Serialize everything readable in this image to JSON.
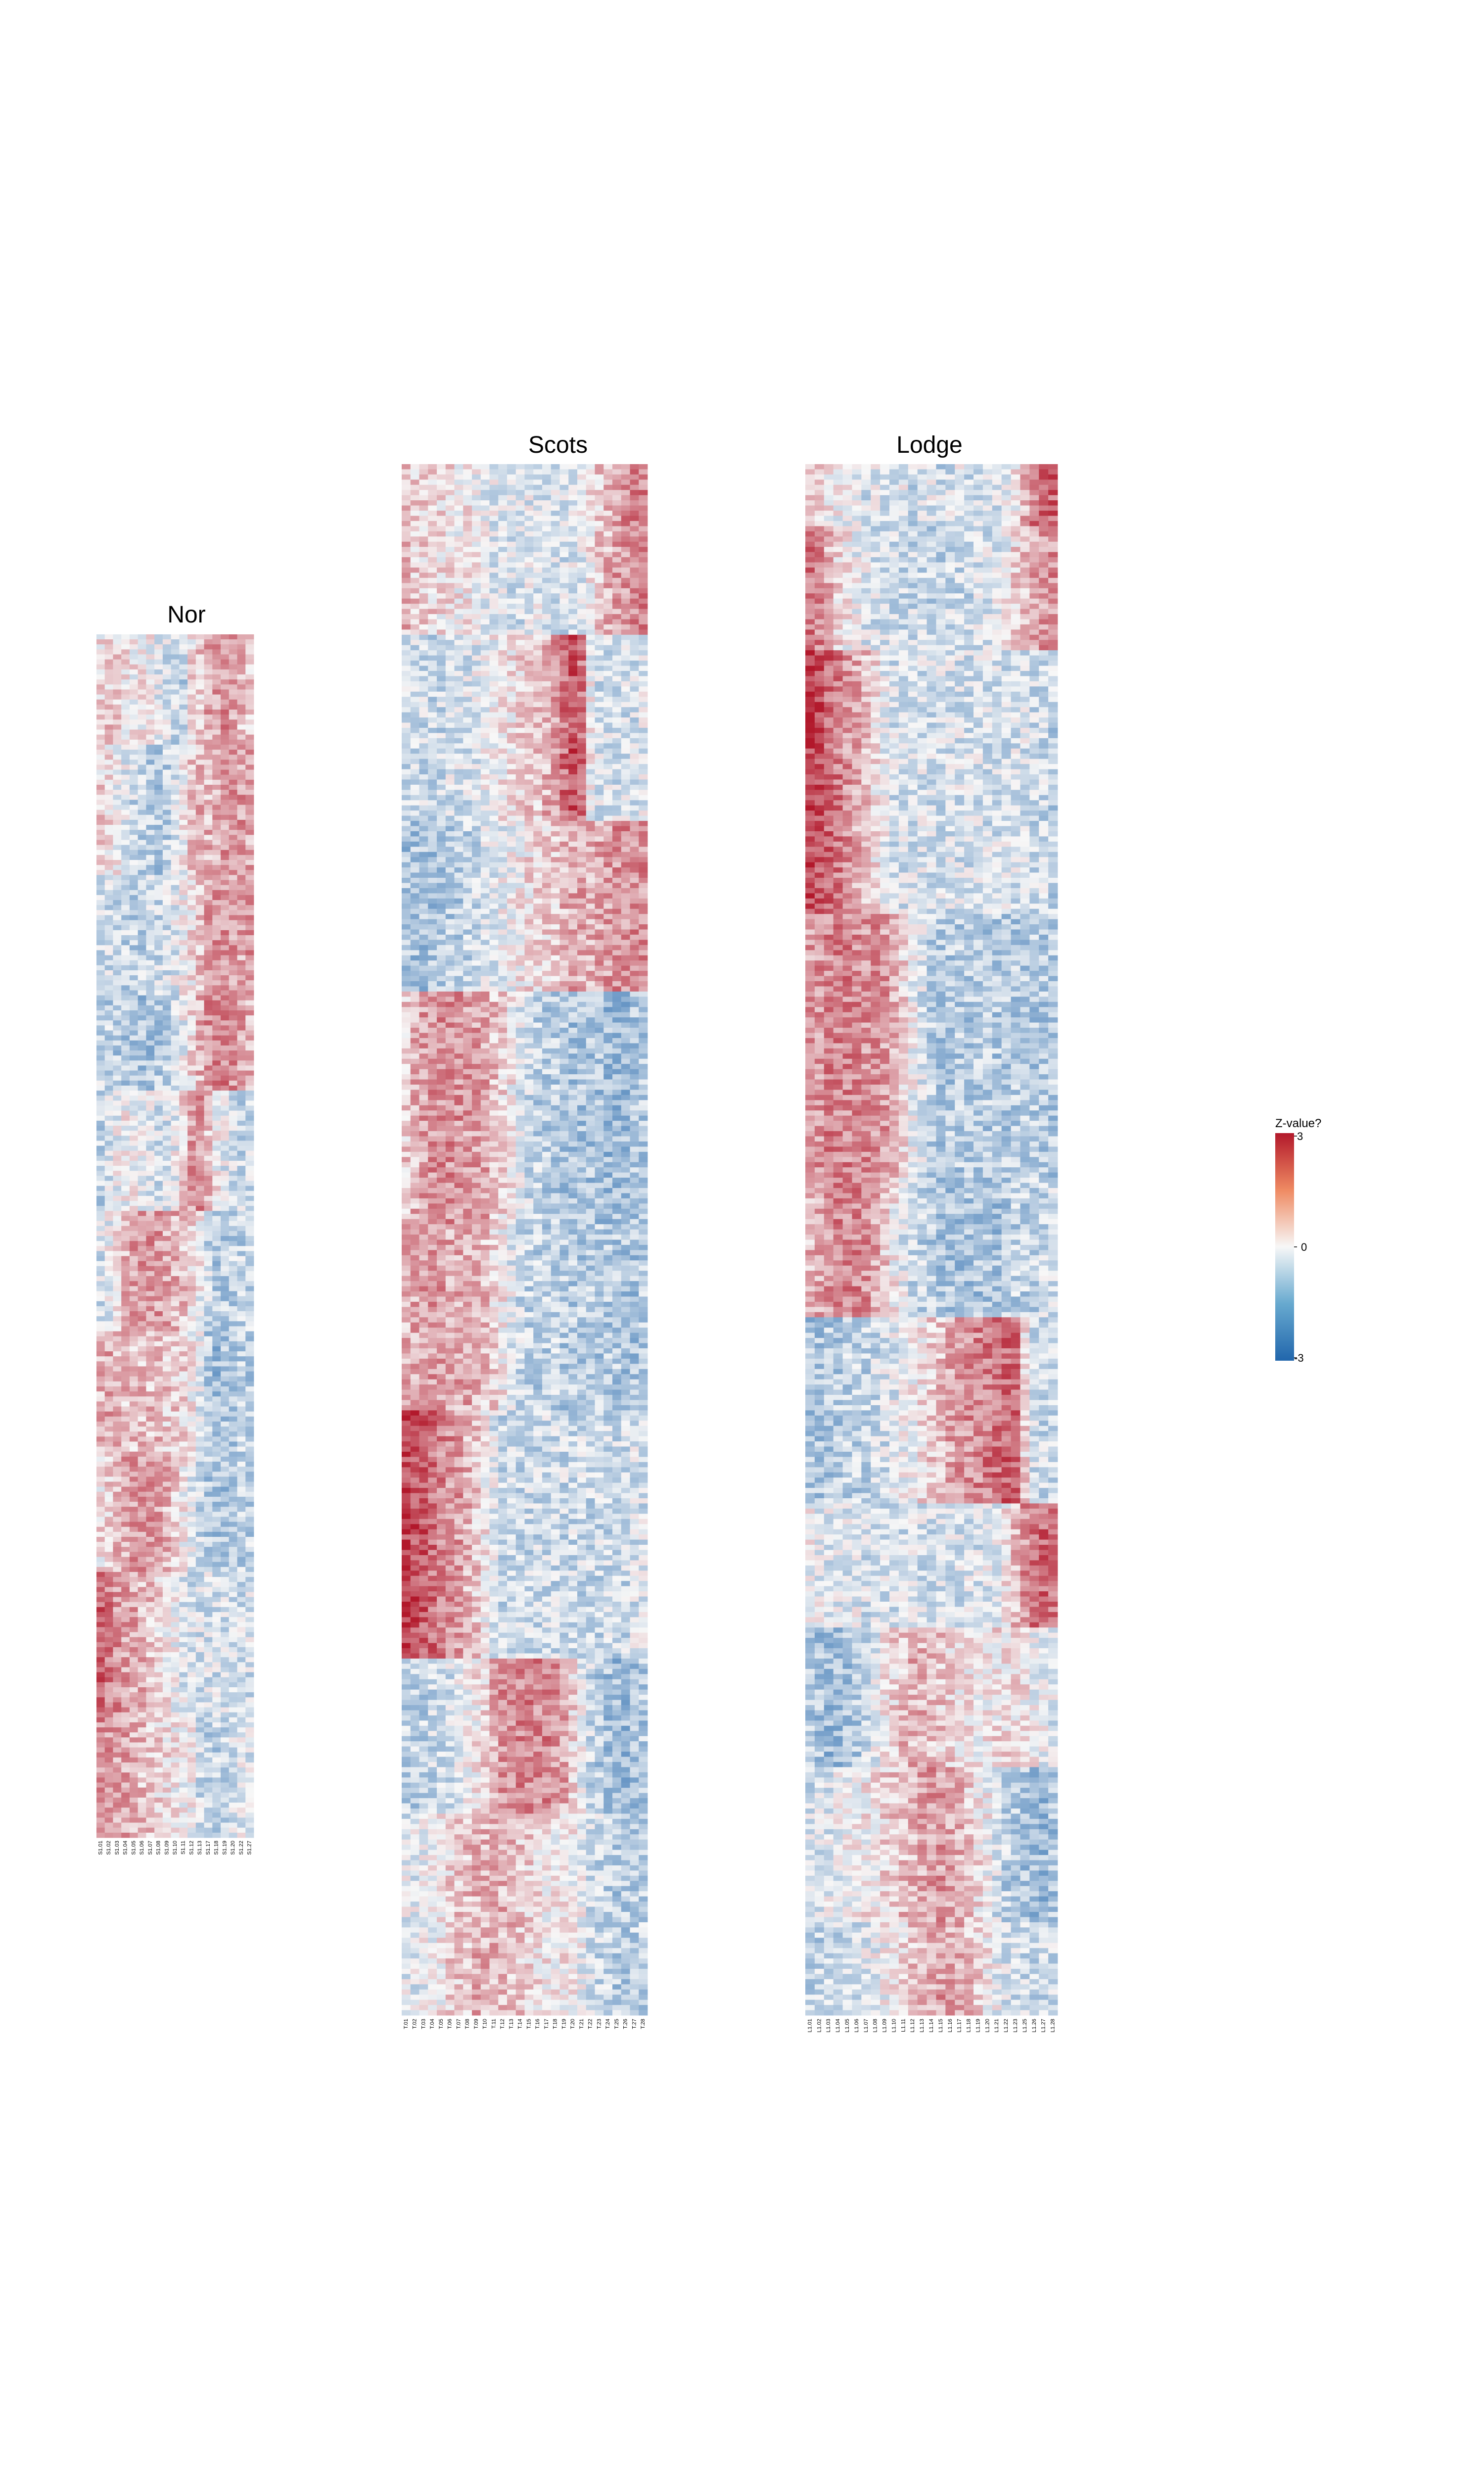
{
  "chart_data": [
    {
      "type": "heatmap",
      "title": "Nor",
      "column_labels": [
        "S1.01",
        "S1.02",
        "S1.03",
        "S1.04",
        "S1.05",
        "S1.06",
        "S1.07",
        "S1.08",
        "S1.09",
        "S1.10",
        "S1.11",
        "S1.12",
        "S1.13",
        "S1.17",
        "S1.18",
        "S1.19",
        "S1.20",
        "S1.22",
        "S1.27"
      ],
      "row_count": 240,
      "blocks": [
        {
          "row_start": 0.0,
          "row_end": 0.09,
          "levels": [
            0.2,
            0.4,
            0.3,
            0.2,
            0.1,
            0.1,
            0.0,
            -0.2,
            -0.3,
            -0.4,
            -0.5,
            0.2,
            0.4,
            0.7,
            0.8,
            0.9,
            0.7,
            0.5,
            0.4
          ]
        },
        {
          "row_start": 0.09,
          "row_end": 0.2,
          "levels": [
            0.3,
            0.2,
            0.0,
            -0.2,
            -0.4,
            -0.5,
            -0.6,
            -0.6,
            -0.5,
            -0.3,
            0.0,
            0.4,
            0.6,
            0.6,
            0.7,
            0.8,
            0.9,
            0.8,
            0.7
          ]
        },
        {
          "row_start": 0.2,
          "row_end": 0.3,
          "levels": [
            -0.3,
            -0.4,
            -0.5,
            -0.5,
            -0.5,
            -0.5,
            -0.4,
            -0.4,
            -0.3,
            -0.2,
            0.0,
            0.2,
            0.4,
            0.8,
            0.9,
            0.9,
            0.8,
            0.7,
            0.9
          ]
        },
        {
          "row_start": 0.3,
          "row_end": 0.38,
          "levels": [
            -0.4,
            -0.5,
            -0.6,
            -0.6,
            -0.6,
            -0.7,
            -0.7,
            -0.6,
            -0.5,
            -0.3,
            -0.1,
            0.2,
            0.6,
            0.9,
            1.0,
            1.0,
            0.9,
            0.8,
            0.6
          ]
        },
        {
          "row_start": 0.38,
          "row_end": 0.48,
          "levels": [
            -0.5,
            -0.3,
            -0.1,
            0.0,
            0.0,
            -0.1,
            -0.2,
            -0.3,
            -0.3,
            -0.1,
            0.4,
            0.8,
            0.9,
            0.5,
            0.1,
            -0.2,
            -0.3,
            -0.4,
            -0.4
          ]
        },
        {
          "row_start": 0.48,
          "row_end": 0.58,
          "levels": [
            -0.3,
            -0.1,
            0.3,
            0.6,
            0.8,
            0.9,
            0.9,
            0.8,
            0.7,
            0.6,
            0.5,
            0.3,
            0.0,
            -0.4,
            -0.6,
            -0.6,
            -0.5,
            -0.5,
            -0.5
          ]
        },
        {
          "row_start": 0.58,
          "row_end": 0.68,
          "levels": [
            0.6,
            0.7,
            0.6,
            0.5,
            0.5,
            0.5,
            0.5,
            0.5,
            0.4,
            0.4,
            0.3,
            0.1,
            -0.2,
            -0.6,
            -0.8,
            -0.7,
            -0.6,
            -0.5,
            -0.6
          ]
        },
        {
          "row_start": 0.68,
          "row_end": 0.78,
          "levels": [
            0.2,
            0.3,
            0.5,
            0.7,
            0.8,
            0.9,
            0.9,
            0.8,
            0.6,
            0.4,
            0.1,
            -0.2,
            -0.4,
            -0.6,
            -0.7,
            -0.7,
            -0.6,
            -0.5,
            -0.5
          ]
        },
        {
          "row_start": 0.78,
          "row_end": 0.9,
          "levels": [
            1.3,
            1.1,
            0.9,
            0.8,
            0.7,
            0.6,
            0.5,
            0.3,
            0.1,
            0.0,
            -0.2,
            -0.3,
            -0.3,
            -0.3,
            -0.3,
            -0.3,
            -0.3,
            -0.3,
            -0.3
          ]
        },
        {
          "row_start": 0.9,
          "row_end": 1.0,
          "levels": [
            0.9,
            0.8,
            0.7,
            0.7,
            0.6,
            0.5,
            0.4,
            0.3,
            0.2,
            0.1,
            0.0,
            0.0,
            -0.4,
            -0.6,
            -0.5,
            -0.4,
            -0.3,
            -0.2,
            -0.2
          ]
        }
      ]
    },
    {
      "type": "heatmap",
      "title": "Scots",
      "column_labels": [
        "T.01",
        "T.02",
        "T.03",
        "T.04",
        "T.05",
        "T.06",
        "T.07",
        "T.08",
        "T.09",
        "T.10",
        "T.11",
        "T.12",
        "T.13",
        "T.14",
        "T.15",
        "T.16",
        "T.17",
        "T.18",
        "T.19",
        "T.20",
        "T.21",
        "T.22",
        "T.23",
        "T.24",
        "T.25",
        "T.26",
        "T.27",
        "T.28"
      ],
      "row_count": 300,
      "blocks": [
        {
          "row_start": 0.0,
          "row_end": 0.11,
          "levels": [
            0.6,
            0.4,
            0.3,
            0.3,
            0.2,
            0.2,
            0.1,
            0.1,
            0.0,
            -0.1,
            -0.2,
            -0.2,
            -0.3,
            -0.3,
            -0.2,
            -0.2,
            -0.2,
            -0.3,
            -0.3,
            -0.2,
            -0.2,
            0.1,
            0.4,
            0.6,
            0.8,
            0.9,
            1.0,
            1.0
          ]
        },
        {
          "row_start": 0.11,
          "row_end": 0.23,
          "levels": [
            -0.4,
            -0.4,
            -0.4,
            -0.4,
            -0.4,
            -0.3,
            -0.3,
            -0.3,
            -0.2,
            -0.1,
            0.0,
            0.1,
            0.2,
            0.3,
            0.4,
            0.4,
            0.6,
            0.8,
            1.2,
            1.5,
            1.2,
            0.0,
            -0.3,
            -0.3,
            -0.3,
            -0.3,
            -0.3,
            -0.2
          ]
        },
        {
          "row_start": 0.23,
          "row_end": 0.34,
          "levels": [
            -0.7,
            -0.7,
            -0.7,
            -0.7,
            -0.6,
            -0.6,
            -0.6,
            -0.5,
            -0.4,
            -0.3,
            -0.2,
            -0.1,
            0.0,
            0.1,
            0.2,
            0.3,
            0.3,
            0.4,
            0.6,
            0.7,
            0.7,
            0.6,
            0.7,
            0.8,
            0.9,
            0.9,
            0.9,
            0.9
          ]
        },
        {
          "row_start": 0.34,
          "row_end": 0.49,
          "levels": [
            0.4,
            0.6,
            0.8,
            0.9,
            0.9,
            0.9,
            0.9,
            0.8,
            0.8,
            0.7,
            0.5,
            0.3,
            0.1,
            -0.2,
            -0.4,
            -0.5,
            -0.6,
            -0.6,
            -0.7,
            -0.7,
            -0.7,
            -0.7,
            -0.7,
            -0.8,
            -0.8,
            -0.8,
            -0.7,
            -0.6
          ]
        },
        {
          "row_start": 0.49,
          "row_end": 0.61,
          "levels": [
            0.6,
            0.7,
            0.8,
            0.8,
            0.8,
            0.7,
            0.7,
            0.7,
            0.6,
            0.5,
            0.3,
            0.1,
            -0.2,
            -0.4,
            -0.5,
            -0.5,
            -0.5,
            -0.5,
            -0.6,
            -0.6,
            -0.6,
            -0.6,
            -0.6,
            -0.6,
            -0.6,
            -0.7,
            -0.7,
            -0.6
          ]
        },
        {
          "row_start": 0.61,
          "row_end": 0.77,
          "levels": [
            1.6,
            1.5,
            1.4,
            1.2,
            1.0,
            0.9,
            0.8,
            0.6,
            0.4,
            0.1,
            -0.2,
            -0.4,
            -0.4,
            -0.4,
            -0.4,
            -0.4,
            -0.4,
            -0.4,
            -0.4,
            -0.4,
            -0.4,
            -0.4,
            -0.4,
            -0.4,
            -0.4,
            -0.4,
            -0.3,
            -0.3
          ]
        },
        {
          "row_start": 0.77,
          "row_end": 0.87,
          "levels": [
            -0.5,
            -0.5,
            -0.5,
            -0.4,
            -0.4,
            -0.3,
            -0.2,
            -0.1,
            0.1,
            0.3,
            0.6,
            0.9,
            1.0,
            1.0,
            1.0,
            1.0,
            1.0,
            0.9,
            0.7,
            0.3,
            -0.1,
            -0.4,
            -0.6,
            -0.7,
            -0.8,
            -0.8,
            -0.7,
            -0.6
          ]
        },
        {
          "row_start": 0.87,
          "row_end": 1.0,
          "levels": [
            -0.2,
            -0.2,
            -0.1,
            0.0,
            0.1,
            0.3,
            0.4,
            0.5,
            0.6,
            0.6,
            0.6,
            0.6,
            0.5,
            0.4,
            0.3,
            0.2,
            0.1,
            0.1,
            0.1,
            0.0,
            -0.1,
            -0.3,
            -0.4,
            -0.5,
            -0.6,
            -0.6,
            -0.5,
            -0.5
          ]
        }
      ]
    },
    {
      "type": "heatmap",
      "title": "Lodge",
      "column_labels": [
        "L1.01",
        "L1.02",
        "L1.03",
        "L1.04",
        "L1.05",
        "L1.06",
        "L1.07",
        "L1.08",
        "L1.09",
        "L1.10",
        "L1.11",
        "L1.12",
        "L1.13",
        "L1.14",
        "L1.15",
        "L1.16",
        "L1.17",
        "L1.18",
        "L1.19",
        "L1.20",
        "L1.21",
        "L1.22",
        "L1.23",
        "L1.25",
        "L1.26",
        "L1.27",
        "L1.28"
      ],
      "row_count": 300,
      "blocks": [
        {
          "row_start": 0.0,
          "row_end": 0.04,
          "levels": [
            0.2,
            0.2,
            0.1,
            0.0,
            -0.1,
            -0.2,
            -0.3,
            -0.2,
            -0.4,
            -0.3,
            -0.2,
            -0.4,
            -0.3,
            -0.2,
            -0.4,
            -0.3,
            -0.2,
            -0.4,
            -0.3,
            -0.2,
            -0.3,
            -0.2,
            0.1,
            0.6,
            1.1,
            1.2,
            1.3
          ]
        },
        {
          "row_start": 0.04,
          "row_end": 0.12,
          "levels": [
            1.2,
            1.0,
            0.6,
            0.3,
            0.1,
            -0.1,
            -0.2,
            -0.3,
            -0.3,
            -0.4,
            -0.4,
            -0.4,
            -0.4,
            -0.5,
            -0.5,
            -0.4,
            -0.4,
            -0.4,
            -0.3,
            -0.3,
            -0.2,
            0.0,
            0.3,
            0.5,
            0.7,
            0.8,
            0.9
          ]
        },
        {
          "row_start": 0.12,
          "row_end": 0.29,
          "levels": [
            1.6,
            1.5,
            1.3,
            1.1,
            0.9,
            0.7,
            0.5,
            0.2,
            -0.1,
            -0.3,
            -0.3,
            -0.3,
            -0.3,
            -0.3,
            -0.3,
            -0.3,
            -0.3,
            -0.3,
            -0.3,
            -0.3,
            -0.3,
            -0.3,
            -0.3,
            -0.3,
            -0.4,
            -0.4,
            -0.5
          ]
        },
        {
          "row_start": 0.29,
          "row_end": 0.46,
          "levels": [
            0.8,
            0.9,
            1.0,
            1.0,
            1.0,
            1.0,
            0.9,
            0.9,
            0.8,
            0.6,
            0.3,
            0.0,
            -0.3,
            -0.5,
            -0.6,
            -0.6,
            -0.6,
            -0.6,
            -0.6,
            -0.6,
            -0.6,
            -0.6,
            -0.6,
            -0.6,
            -0.6,
            -0.6,
            -0.6
          ]
        },
        {
          "row_start": 0.46,
          "row_end": 0.55,
          "levels": [
            0.6,
            0.7,
            0.9,
            1.0,
            1.0,
            1.0,
            0.9,
            0.7,
            0.4,
            0.1,
            -0.2,
            -0.4,
            -0.5,
            -0.6,
            -0.7,
            -0.7,
            -0.7,
            -0.7,
            -0.7,
            -0.7,
            -0.7,
            -0.6,
            -0.5,
            -0.5,
            -0.5,
            -0.4,
            -0.4
          ]
        },
        {
          "row_start": 0.55,
          "row_end": 0.67,
          "levels": [
            -0.7,
            -0.7,
            -0.6,
            -0.6,
            -0.5,
            -0.5,
            -0.5,
            -0.4,
            -0.3,
            -0.2,
            -0.1,
            0.0,
            0.2,
            0.4,
            0.5,
            0.7,
            0.8,
            0.9,
            1.0,
            1.1,
            1.2,
            1.3,
            1.2,
            0.3,
            -0.3,
            -0.4,
            -0.4
          ]
        },
        {
          "row_start": 0.67,
          "row_end": 0.75,
          "levels": [
            0.0,
            -0.1,
            -0.2,
            -0.2,
            -0.2,
            -0.2,
            -0.3,
            -0.3,
            -0.3,
            -0.3,
            -0.3,
            -0.3,
            -0.3,
            -0.3,
            -0.3,
            -0.3,
            -0.3,
            -0.3,
            -0.3,
            -0.2,
            -0.1,
            0.1,
            0.5,
            0.9,
            1.2,
            1.3,
            1.2
          ]
        },
        {
          "row_start": 0.75,
          "row_end": 0.84,
          "levels": [
            -0.6,
            -0.7,
            -0.8,
            -0.8,
            -0.7,
            -0.6,
            -0.4,
            -0.2,
            0.1,
            0.3,
            0.5,
            0.6,
            0.6,
            0.5,
            0.4,
            0.3,
            0.2,
            0.1,
            0.0,
            0.1,
            0.2,
            0.2,
            0.2,
            0.1,
            0.0,
            -0.1,
            -0.2
          ]
        },
        {
          "row_start": 0.84,
          "row_end": 0.94,
          "levels": [
            -0.3,
            -0.3,
            -0.2,
            -0.1,
            0.0,
            0.1,
            0.1,
            0.2,
            0.3,
            0.4,
            0.5,
            0.6,
            0.7,
            0.8,
            0.8,
            0.7,
            0.6,
            0.4,
            0.2,
            0.0,
            -0.3,
            -0.5,
            -0.6,
            -0.7,
            -0.8,
            -0.8,
            -0.7
          ]
        },
        {
          "row_start": 0.94,
          "row_end": 1.0,
          "levels": [
            -0.5,
            -0.5,
            -0.5,
            -0.4,
            -0.4,
            -0.3,
            -0.2,
            -0.1,
            0.0,
            0.1,
            0.2,
            0.4,
            0.6,
            0.7,
            0.8,
            0.7,
            0.6,
            0.5,
            0.3,
            0.1,
            -0.1,
            -0.3,
            -0.4,
            -0.4,
            -0.4,
            -0.4,
            -0.4
          ]
        }
      ]
    }
  ],
  "legend": {
    "title": "Z-value?",
    "max_label": "3",
    "mid_label": "0",
    "min_label": "-3",
    "range": [
      -3,
      3
    ],
    "colors": {
      "low": "#2166ac",
      "mid": "#f7f7f7",
      "high": "#b2182b"
    }
  }
}
